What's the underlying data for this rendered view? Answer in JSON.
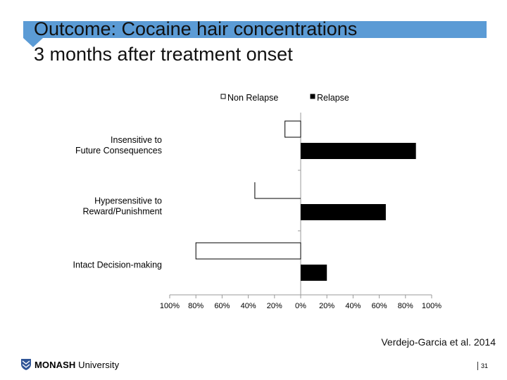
{
  "slide": {
    "title_line1": "Outcome: Cocaine hair concentrations",
    "title_line2": "3 months after treatment onset",
    "citation": "Verdejo-Garcia et al. 2014",
    "logo_bold": "MONASH",
    "logo_rest": " University",
    "page_number": "31",
    "accent_color": "#5b9bd5"
  },
  "chart_data": {
    "type": "bar",
    "orientation": "horizontal",
    "diverging": true,
    "categories": [
      [
        "Insensitive to",
        "Future Consequences"
      ],
      [
        "Hypersensitive to",
        "Reward/Punishment"
      ],
      [
        "Intact Decision-making"
      ]
    ],
    "series": [
      {
        "name": "Non Relapse",
        "values": [
          12,
          35,
          80
        ],
        "direction": "left",
        "color": "#ffffff",
        "stroke": "#000000"
      },
      {
        "name": "Relapse",
        "values": [
          88,
          65,
          20
        ],
        "direction": "right",
        "color": "#000000",
        "stroke": "#000000"
      }
    ],
    "xlim": [
      -100,
      100
    ],
    "xticks": [
      "100%",
      "80%",
      "60%",
      "40%",
      "20%",
      "0%",
      "20%",
      "40%",
      "60%",
      "80%",
      "100%"
    ],
    "legend_position": "top",
    "grid": false
  }
}
